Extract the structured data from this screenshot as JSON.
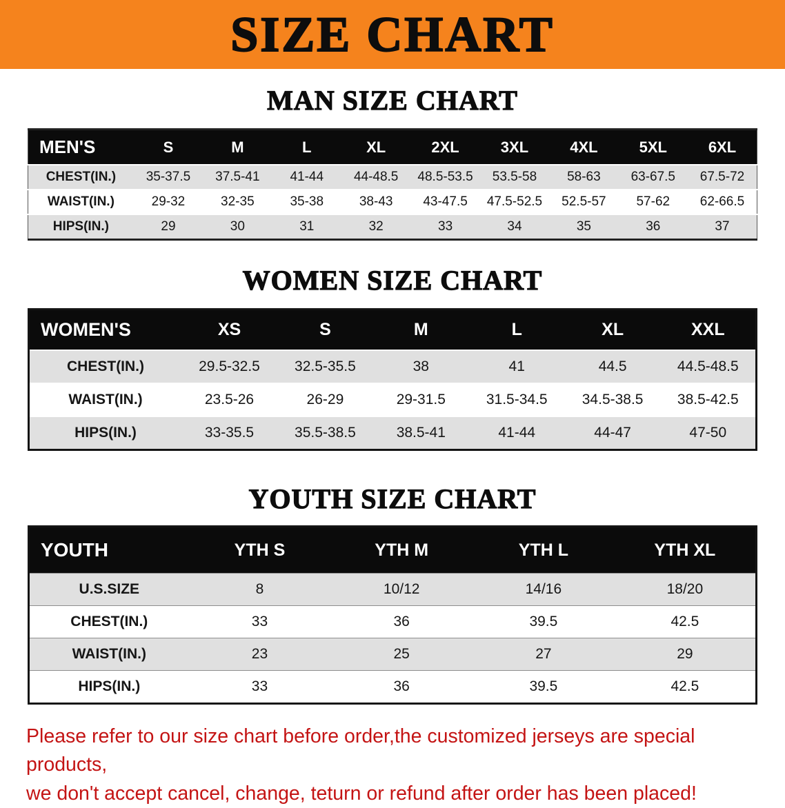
{
  "banner": {
    "title": "SIZE CHART"
  },
  "men": {
    "heading": "MAN SIZE CHART",
    "header": [
      "MEN'S",
      "S",
      "M",
      "L",
      "XL",
      "2XL",
      "3XL",
      "4XL",
      "5XL",
      "6XL"
    ],
    "rows": [
      [
        "CHEST(IN.)",
        "35-37.5",
        "37.5-41",
        "41-44",
        "44-48.5",
        "48.5-53.5",
        "53.5-58",
        "58-63",
        "63-67.5",
        "67.5-72"
      ],
      [
        "WAIST(IN.)",
        "29-32",
        "32-35",
        "35-38",
        "38-43",
        "43-47.5",
        "47.5-52.5",
        "52.5-57",
        "57-62",
        "62-66.5"
      ],
      [
        "HIPS(IN.)",
        "29",
        "30",
        "31",
        "32",
        "33",
        "34",
        "35",
        "36",
        "37"
      ]
    ]
  },
  "women": {
    "heading": "WOMEN SIZE CHART",
    "header": [
      "WOMEN'S",
      "XS",
      "S",
      "M",
      "L",
      "XL",
      "XXL"
    ],
    "rows": [
      [
        "CHEST(IN.)",
        "29.5-32.5",
        "32.5-35.5",
        "38",
        "41",
        "44.5",
        "44.5-48.5"
      ],
      [
        "WAIST(IN.)",
        "23.5-26",
        "26-29",
        "29-31.5",
        "31.5-34.5",
        "34.5-38.5",
        "38.5-42.5"
      ],
      [
        "HIPS(IN.)",
        "33-35.5",
        "35.5-38.5",
        "38.5-41",
        "41-44",
        "44-47",
        "47-50"
      ]
    ]
  },
  "youth": {
    "heading": "YOUTH SIZE CHART",
    "header": [
      "YOUTH",
      "YTH S",
      "YTH M",
      "YTH L",
      "YTH XL"
    ],
    "rows": [
      [
        "U.S.SIZE",
        "8",
        "10/12",
        "14/16",
        "18/20"
      ],
      [
        "CHEST(IN.)",
        "33",
        "36",
        "39.5",
        "42.5"
      ],
      [
        "WAIST(IN.)",
        "23",
        "25",
        "27",
        "29"
      ],
      [
        "HIPS(IN.)",
        "33",
        "36",
        "39.5",
        "42.5"
      ]
    ]
  },
  "disclaimer": {
    "line1": "Please refer to our size chart before order,the customized jerseys are special products,",
    "line2": "we don't accept cancel, change, teturn or refund after order has been placed!"
  },
  "colors": {
    "banner_orange": "#f5831d",
    "header_black": "#0b0b0b",
    "row_gray": "#e0e0e0",
    "disclaimer_red": "#c41414"
  }
}
